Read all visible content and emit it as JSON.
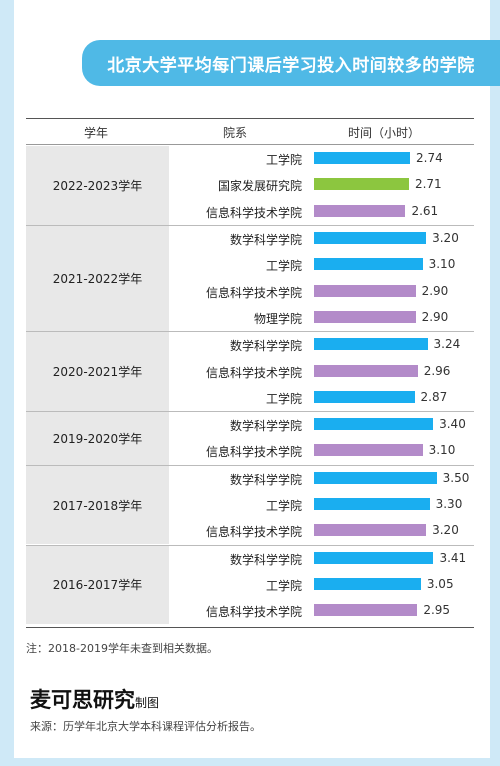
{
  "title": "北京大学平均每门课后学习投入时间较多的学院",
  "header": {
    "col_year": "学年",
    "col_school": "院系",
    "col_time": "时间（小时）"
  },
  "colors": {
    "工学院": "#1aaef0",
    "国家发展研究院": "#8cc63f",
    "信息科学技术学院": "#b38bc9",
    "数学科学学院": "#1aaef0",
    "物理学院": "#b38bc9"
  },
  "chart_data": {
    "type": "bar",
    "orientation": "horizontal",
    "title": "北京大学平均每门课后学习投入时间较多的学院",
    "ylabel": "时间（小时）",
    "xlim": [
      0,
      3.5
    ],
    "groups": [
      {
        "year": "2022-2023学年",
        "rows": [
          {
            "school": "工学院",
            "value": 2.74,
            "label": "2.74"
          },
          {
            "school": "国家发展研究院",
            "value": 2.71,
            "label": "2.71"
          },
          {
            "school": "信息科学技术学院",
            "value": 2.61,
            "label": "2.61"
          }
        ]
      },
      {
        "year": "2021-2022学年",
        "rows": [
          {
            "school": "数学科学学院",
            "value": 3.2,
            "label": "3.20"
          },
          {
            "school": "工学院",
            "value": 3.1,
            "label": "3.10"
          },
          {
            "school": "信息科学技术学院",
            "value": 2.9,
            "label": "2.90"
          },
          {
            "school": "物理学院",
            "value": 2.9,
            "label": "2.90"
          }
        ]
      },
      {
        "year": "2020-2021学年",
        "rows": [
          {
            "school": "数学科学学院",
            "value": 3.24,
            "label": "3.24"
          },
          {
            "school": "信息科学技术学院",
            "value": 2.96,
            "label": "2.96"
          },
          {
            "school": "工学院",
            "value": 2.87,
            "label": "2.87"
          }
        ]
      },
      {
        "year": "2019-2020学年",
        "rows": [
          {
            "school": "数学科学学院",
            "value": 3.4,
            "label": "3.40"
          },
          {
            "school": "信息科学技术学院",
            "value": 3.1,
            "label": "3.10"
          }
        ]
      },
      {
        "year": "2017-2018学年",
        "rows": [
          {
            "school": "数学科学学院",
            "value": 3.5,
            "label": "3.50"
          },
          {
            "school": "工学院",
            "value": 3.3,
            "label": "3.30"
          },
          {
            "school": "信息科学技术学院",
            "value": 3.2,
            "label": "3.20"
          }
        ]
      },
      {
        "year": "2016-2017学年",
        "rows": [
          {
            "school": "数学科学学院",
            "value": 3.41,
            "label": "3.41"
          },
          {
            "school": "工学院",
            "value": 3.05,
            "label": "3.05"
          },
          {
            "school": "信息科学技术学院",
            "value": 2.95,
            "label": "2.95"
          }
        ]
      }
    ]
  },
  "note": "注：2018-2019学年未查到相关数据。",
  "brand": {
    "name": "麦可思研究",
    "suffix": "制图"
  },
  "source": "来源：历学年北京大学本科课程评估分析报告。"
}
